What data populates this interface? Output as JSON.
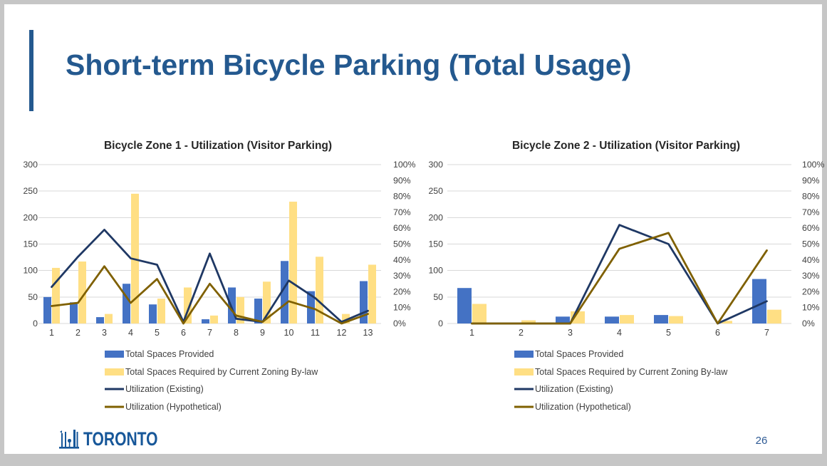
{
  "slide": {
    "title": "Short-term Bicycle Parking (Total Usage)",
    "page_number": "26",
    "logo_text": "TORONTO"
  },
  "colors": {
    "title_blue": "#24598F",
    "accent_bar": "#24598F",
    "gridline": "#D9D9D9",
    "axis_text": "#404040",
    "chart_title_text": "#262626",
    "logo_blue": "#175799",
    "page_number_blue": "#2E5A94"
  },
  "chart_data": [
    {
      "type": "bar",
      "subtype": "combo-bar-line",
      "title": "Bicycle Zone 1 - Utilization (Visitor Parking)",
      "categories": [
        "1",
        "2",
        "3",
        "4",
        "5",
        "6",
        "7",
        "8",
        "9",
        "10",
        "11",
        "12",
        "13"
      ],
      "series": [
        {
          "name": "Total Spaces Provided",
          "render": "bar",
          "axis": "left",
          "unit": "spaces",
          "color": "#4472C4",
          "values": [
            50,
            40,
            12,
            75,
            36,
            0,
            8,
            68,
            47,
            118,
            61,
            0,
            80
          ]
        },
        {
          "name": "Total Spaces Required by Current Zoning By-law",
          "render": "bar",
          "axis": "left",
          "unit": "spaces",
          "color": "#FFDF84",
          "values": [
            105,
            117,
            18,
            245,
            47,
            68,
            15,
            50,
            79,
            230,
            126,
            18,
            111
          ]
        },
        {
          "name": "Utilization (Existing)",
          "render": "line",
          "axis": "right",
          "unit": "percent",
          "color": "#1F3864",
          "values": [
            23,
            42,
            59,
            41,
            37,
            1,
            44,
            3,
            1,
            27,
            16,
            1,
            8
          ]
        },
        {
          "name": "Utilization (Hypothetical)",
          "render": "line",
          "axis": "right",
          "unit": "percent",
          "color": "#7F6000",
          "values": [
            11,
            13,
            36,
            13,
            28,
            0,
            25,
            5,
            1,
            14,
            9,
            0,
            6
          ]
        }
      ],
      "left_axis": {
        "min": 0,
        "max": 300,
        "tick_labels": [
          "0",
          "50",
          "100",
          "150",
          "200",
          "250",
          "300"
        ]
      },
      "right_axis": {
        "min": 0,
        "max": 100,
        "tick_labels": [
          "0%",
          "10%",
          "20%",
          "30%",
          "40%",
          "50%",
          "60%",
          "70%",
          "80%",
          "90%",
          "100%"
        ]
      },
      "grid": true,
      "legend_position": "bottom-left"
    },
    {
      "type": "bar",
      "subtype": "combo-bar-line",
      "title": "Bicycle Zone 2 - Utilization (Visitor Parking)",
      "categories": [
        "1",
        "2",
        "3",
        "4",
        "5",
        "6",
        "7"
      ],
      "series": [
        {
          "name": "Total Spaces Provided",
          "render": "bar",
          "axis": "left",
          "unit": "spaces",
          "color": "#4472C4",
          "values": [
            67,
            0,
            13,
            13,
            16,
            0,
            84
          ]
        },
        {
          "name": "Total Spaces Required by Current Zoning By-law",
          "render": "bar",
          "axis": "left",
          "unit": "spaces",
          "color": "#FFDF84",
          "values": [
            37,
            6,
            23,
            16,
            14,
            5,
            26
          ]
        },
        {
          "name": "Utilization (Existing)",
          "render": "line",
          "axis": "right",
          "unit": "percent",
          "color": "#1F3864",
          "values": [
            0,
            0,
            0,
            62,
            50,
            0,
            14
          ]
        },
        {
          "name": "Utilization (Hypothetical)",
          "render": "line",
          "axis": "right",
          "unit": "percent",
          "color": "#7F6000",
          "values": [
            0,
            0,
            0,
            47,
            57,
            0,
            46
          ]
        }
      ],
      "left_axis": {
        "min": 0,
        "max": 300,
        "tick_labels": [
          "0",
          "50",
          "100",
          "150",
          "200",
          "250",
          "300"
        ]
      },
      "right_axis": {
        "min": 0,
        "max": 100,
        "tick_labels": [
          "0%",
          "10%",
          "20%",
          "30%",
          "40%",
          "50%",
          "60%",
          "70%",
          "80%",
          "90%",
          "100%"
        ]
      },
      "grid": true,
      "legend_position": "bottom-left"
    }
  ]
}
